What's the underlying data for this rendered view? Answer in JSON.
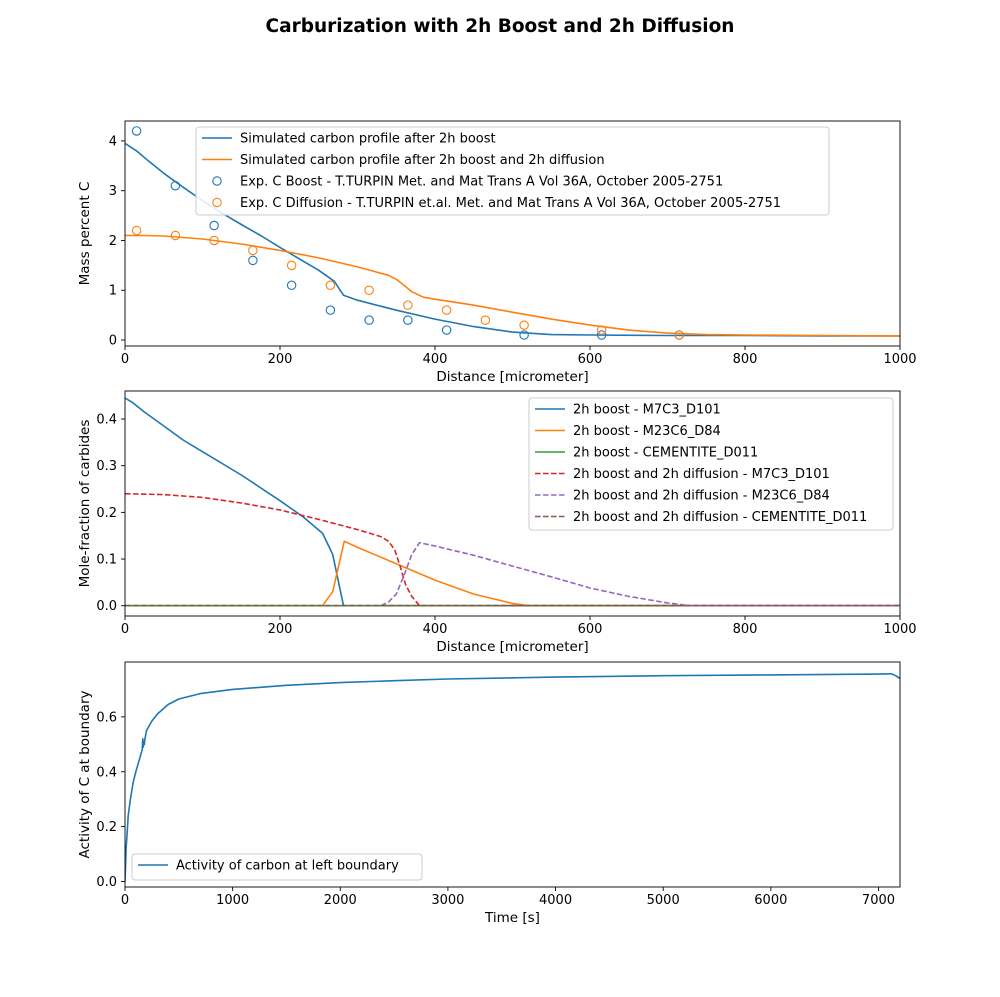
{
  "figure": {
    "title": "Carburization with 2h Boost and 2h Diffusion"
  },
  "chart_data": [
    {
      "type": "line",
      "xlabel": "Distance [micrometer]",
      "ylabel": "Mass percent C",
      "xlim": [
        0,
        1000
      ],
      "ylim": [
        -0.12,
        4.4
      ],
      "xticks": [
        0,
        200,
        400,
        600,
        800,
        1000
      ],
      "yticks": [
        0,
        1,
        2,
        3,
        4
      ],
      "legend": "top-right",
      "grid": false,
      "series": [
        {
          "name": "Simulated carbon profile after 2h boost",
          "style": "line",
          "color": "#1f77b4",
          "x": [
            0,
            15,
            30,
            50,
            75,
            100,
            125,
            150,
            175,
            200,
            225,
            250,
            270,
            282,
            300,
            350,
            400,
            450,
            500,
            550,
            600,
            700,
            800,
            900,
            1000
          ],
          "y": [
            3.95,
            3.8,
            3.6,
            3.35,
            3.07,
            2.8,
            2.55,
            2.32,
            2.1,
            1.86,
            1.63,
            1.4,
            1.18,
            0.9,
            0.8,
            0.6,
            0.42,
            0.27,
            0.16,
            0.11,
            0.1,
            0.09,
            0.09,
            0.08,
            0.08
          ]
        },
        {
          "name": "Simulated carbon profile after 2h boost and 2h diffusion",
          "style": "line",
          "color": "#ff7f0e",
          "x": [
            0,
            25,
            50,
            100,
            150,
            200,
            250,
            300,
            340,
            350,
            360,
            370,
            385,
            400,
            450,
            500,
            550,
            600,
            650,
            700,
            750,
            800,
            900,
            1000
          ],
          "y": [
            2.1,
            2.1,
            2.09,
            2.03,
            1.93,
            1.8,
            1.65,
            1.47,
            1.3,
            1.22,
            1.1,
            0.97,
            0.86,
            0.82,
            0.7,
            0.56,
            0.42,
            0.3,
            0.2,
            0.14,
            0.11,
            0.1,
            0.09,
            0.08
          ]
        },
        {
          "name": "Exp. C Boost - T.TURPIN Met. and Mat Trans A Vol 36A, October 2005-2751",
          "style": "marker",
          "color": "#1f77b4",
          "x": [
            15,
            65,
            115,
            165,
            215,
            265,
            315,
            365,
            415,
            515,
            615,
            715
          ],
          "y": [
            4.2,
            3.1,
            2.3,
            1.6,
            1.1,
            0.6,
            0.4,
            0.4,
            0.2,
            0.1,
            0.1,
            0.1
          ]
        },
        {
          "name": "Exp. C Diffusion - T.TURPIN et.al. Met. and Mat Trans A Vol 36A, October 2005-2751",
          "style": "marker",
          "color": "#ff7f0e",
          "x": [
            15,
            65,
            115,
            165,
            215,
            265,
            315,
            365,
            415,
            465,
            515,
            615,
            715
          ],
          "y": [
            2.2,
            2.1,
            2.0,
            1.8,
            1.5,
            1.1,
            1.0,
            0.7,
            0.6,
            0.4,
            0.3,
            0.2,
            0.1
          ]
        }
      ]
    },
    {
      "type": "line",
      "xlabel": "Distance [micrometer]",
      "ylabel": "Mole-fraction of carbides",
      "xlim": [
        0,
        1000
      ],
      "ylim": [
        -0.022,
        0.46
      ],
      "xticks": [
        0,
        200,
        400,
        600,
        800,
        1000
      ],
      "yticks": [
        0.0,
        0.1,
        0.2,
        0.3,
        0.4
      ],
      "ytick_labels": [
        "0.0",
        "0.1",
        "0.2",
        "0.3",
        "0.4"
      ],
      "legend": "top-right",
      "grid": false,
      "series": [
        {
          "name": "2h boost - M7C3_D101",
          "style": "line",
          "color": "#1f77b4",
          "x": [
            0,
            10,
            25,
            50,
            75,
            100,
            150,
            200,
            230,
            255,
            268,
            282,
            290,
            1000
          ],
          "y": [
            0.445,
            0.435,
            0.415,
            0.385,
            0.355,
            0.33,
            0.28,
            0.225,
            0.19,
            0.155,
            0.11,
            0.0,
            0.0,
            0.0
          ]
        },
        {
          "name": "2h boost - M23C6_D84",
          "style": "line",
          "color": "#ff7f0e",
          "x": [
            0,
            255,
            268,
            283,
            300,
            350,
            400,
            450,
            500,
            520,
            1000
          ],
          "y": [
            0,
            0,
            0.03,
            0.138,
            0.125,
            0.09,
            0.055,
            0.025,
            0.005,
            0,
            0
          ]
        },
        {
          "name": "2h boost - CEMENTITE_D011",
          "style": "line",
          "color": "#2ca02c",
          "x": [
            0,
            1000
          ],
          "y": [
            0,
            0
          ]
        },
        {
          "name": "2h boost and 2h diffusion - M7C3_D101",
          "style": "dashed",
          "color": "#d62728",
          "x": [
            0,
            50,
            100,
            150,
            200,
            250,
            300,
            330,
            340,
            348,
            355,
            362,
            370,
            380,
            1000
          ],
          "y": [
            0.24,
            0.238,
            0.232,
            0.22,
            0.205,
            0.185,
            0.163,
            0.148,
            0.138,
            0.12,
            0.085,
            0.045,
            0.02,
            0.0,
            0.0
          ]
        },
        {
          "name": "2h boost and 2h diffusion - M23C6_D84",
          "style": "dashed",
          "color": "#9467bd",
          "x": [
            0,
            330,
            340,
            350,
            360,
            370,
            380,
            400,
            450,
            500,
            550,
            600,
            650,
            700,
            730,
            1000
          ],
          "y": [
            0,
            0,
            0.008,
            0.025,
            0.065,
            0.11,
            0.135,
            0.128,
            0.108,
            0.085,
            0.062,
            0.038,
            0.02,
            0.006,
            0,
            0
          ]
        },
        {
          "name": "2h boost and 2h diffusion - CEMENTITE_D011",
          "style": "dashed",
          "color": "#8c564b",
          "x": [
            0,
            1000
          ],
          "y": [
            0,
            0
          ]
        }
      ]
    },
    {
      "type": "line",
      "xlabel": "Time [s]",
      "ylabel": "Activity of C at boundary",
      "xlim": [
        0,
        7200
      ],
      "ylim": [
        -0.02,
        0.8
      ],
      "xticks": [
        0,
        1000,
        2000,
        3000,
        4000,
        5000,
        6000,
        7000
      ],
      "yticks": [
        0.0,
        0.2,
        0.4,
        0.6
      ],
      "ytick_labels": [
        "0.0",
        "0.2",
        "0.4",
        "0.6"
      ],
      "legend": "bottom-left",
      "grid": false,
      "series": [
        {
          "name": "Activity of carbon at left boundary",
          "style": "line",
          "color": "#1f77b4",
          "x": [
            0,
            10,
            20,
            30,
            50,
            75,
            100,
            130,
            160,
            165,
            170,
            175,
            180,
            185,
            190,
            200,
            250,
            300,
            400,
            500,
            700,
            1000,
            1500,
            2000,
            2500,
            3000,
            4000,
            5000,
            6000,
            7000,
            7120,
            7160,
            7200
          ],
          "y": [
            0.0,
            0.12,
            0.18,
            0.24,
            0.3,
            0.36,
            0.4,
            0.44,
            0.48,
            0.52,
            0.49,
            0.51,
            0.5,
            0.52,
            0.53,
            0.55,
            0.585,
            0.61,
            0.645,
            0.665,
            0.685,
            0.7,
            0.715,
            0.725,
            0.732,
            0.738,
            0.745,
            0.75,
            0.753,
            0.756,
            0.757,
            0.75,
            0.74
          ]
        }
      ]
    }
  ]
}
